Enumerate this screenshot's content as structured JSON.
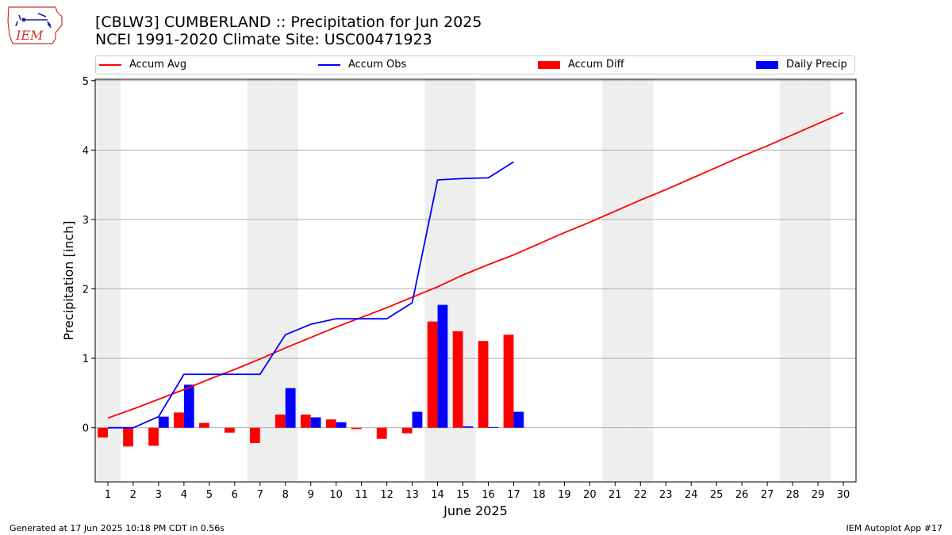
{
  "header": {
    "title_line1": "[CBLW3] CUMBERLAND :: Precipitation for Jun 2025",
    "title_line2": "NCEI 1991-2020 Climate Site: USC00471923"
  },
  "logo": {
    "text": "IEM",
    "icon": "iem-iowa-logo-icon"
  },
  "footer": {
    "generated": "Generated at 17 Jun 2025 10:18 PM CDT in 0.56s",
    "app": "IEM Autoplot App #17"
  },
  "colors": {
    "avg": "#ff0000",
    "obs": "#0000ff",
    "diff": "#ff0000",
    "daily": "#0000ff",
    "weekend": "#eeeeee",
    "grid": "#b0b0b0"
  },
  "chart_data": {
    "type": "bar",
    "title": "[CBLW3] CUMBERLAND :: Precipitation for Jun 2025",
    "xlabel": "June 2025",
    "ylabel": "Precipitation [inch]",
    "xlim": [
      0.5,
      30.5
    ],
    "ylim": [
      -0.78,
      5.02
    ],
    "yticks": [
      0,
      1,
      2,
      3,
      4,
      5
    ],
    "xticks": [
      1,
      2,
      3,
      4,
      5,
      6,
      7,
      8,
      9,
      10,
      11,
      12,
      13,
      14,
      15,
      16,
      17,
      18,
      19,
      20,
      21,
      22,
      23,
      24,
      25,
      26,
      27,
      28,
      29,
      30
    ],
    "grid": "y",
    "legend_position": "top",
    "weekend_days": [
      1,
      7,
      8,
      14,
      15,
      21,
      22,
      28,
      29
    ],
    "series": [
      {
        "name": "Accum Avg",
        "kind": "line",
        "x": [
          1,
          2,
          3,
          4,
          5,
          6,
          7,
          8,
          9,
          10,
          11,
          12,
          13,
          14,
          15,
          16,
          17,
          18,
          19,
          20,
          21,
          22,
          23,
          24,
          25,
          26,
          27,
          28,
          29,
          30
        ],
        "values": [
          0.14,
          0.27,
          0.41,
          0.55,
          0.7,
          0.84,
          0.99,
          1.15,
          1.3,
          1.45,
          1.59,
          1.73,
          1.88,
          2.03,
          2.2,
          2.35,
          2.49,
          2.65,
          2.81,
          2.96,
          3.12,
          3.28,
          3.43,
          3.59,
          3.75,
          3.91,
          4.06,
          4.22,
          4.38,
          4.54
        ]
      },
      {
        "name": "Accum Obs",
        "kind": "line",
        "x": [
          1,
          2,
          3,
          4,
          5,
          6,
          7,
          8,
          9,
          10,
          11,
          12,
          13,
          14,
          15,
          16,
          17
        ],
        "values": [
          0.0,
          0.0,
          0.16,
          0.77,
          0.77,
          0.77,
          0.77,
          1.34,
          1.49,
          1.57,
          1.57,
          1.57,
          1.8,
          3.57,
          3.59,
          3.6,
          3.83
        ]
      },
      {
        "name": "Accum Diff",
        "kind": "bar",
        "x": [
          1,
          2,
          3,
          4,
          5,
          6,
          7,
          8,
          9,
          10,
          11,
          12,
          13,
          14,
          15,
          16,
          17
        ],
        "values": [
          -0.14,
          -0.27,
          -0.26,
          0.22,
          0.07,
          -0.07,
          -0.22,
          0.19,
          0.19,
          0.12,
          -0.02,
          -0.16,
          -0.08,
          1.53,
          1.39,
          1.25,
          1.34
        ]
      },
      {
        "name": "Daily Precip",
        "kind": "bar",
        "x": [
          1,
          2,
          3,
          4,
          5,
          6,
          7,
          8,
          9,
          10,
          11,
          12,
          13,
          14,
          15,
          16,
          17
        ],
        "values": [
          0.0,
          0.0,
          0.16,
          0.62,
          0.0,
          0.0,
          0.0,
          0.57,
          0.15,
          0.08,
          0.0,
          0.0,
          0.23,
          1.77,
          0.02,
          0.01,
          0.23
        ]
      }
    ]
  }
}
